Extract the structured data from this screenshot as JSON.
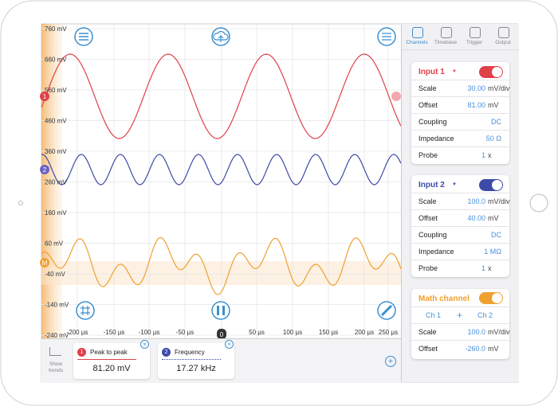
{
  "plot": {
    "y_labels": [
      "760 mV",
      "660 mV",
      "560 mV",
      "460 mV",
      "360 mV",
      "260 mV",
      "160 mV",
      "60 mV",
      "-40 mV",
      "-140 mV",
      "-240 mV"
    ],
    "x_labels": [
      "-200 µs",
      "-150 µs",
      "-100 µs",
      "-50 µs",
      "50 µs",
      "100 µs",
      "150 µs",
      "200 µs",
      "250 µs"
    ],
    "trigger_label": "0",
    "markers": [
      "1",
      "2",
      "M"
    ]
  },
  "tabs": [
    "Channels",
    "Timebase",
    "Trigger",
    "Output"
  ],
  "channels": [
    {
      "title": "Input 1",
      "rows": [
        [
          "Scale",
          "30.00",
          "mV/div"
        ],
        [
          "Offset",
          "81.00",
          "mV"
        ],
        [
          "Coupling",
          "DC"
        ],
        [
          "Impedance",
          "50 Ω"
        ],
        [
          "Probe",
          "1",
          "x"
        ]
      ]
    },
    {
      "title": "Input 2",
      "rows": [
        [
          "Scale",
          "100.0",
          "mV/div"
        ],
        [
          "Offset",
          "40.00",
          "mV"
        ],
        [
          "Coupling",
          "DC"
        ],
        [
          "Impedance",
          "1 MΩ"
        ],
        [
          "Probe",
          "1",
          "x"
        ]
      ]
    }
  ],
  "math": {
    "title": "Math channel",
    "operand_a": "Ch 1",
    "operator": "+",
    "operand_b": "Ch 2",
    "rows": [
      [
        "Scale",
        "100.0",
        "mV/div"
      ],
      [
        "Offset",
        "-260.0",
        "mV"
      ]
    ]
  },
  "trends_label": "Show trends",
  "measurements": [
    {
      "index": "1",
      "label": "Peak to peak",
      "value": "81.20 mV"
    },
    {
      "index": "2",
      "label": "Frequency",
      "value": "17.27 kHz"
    }
  ]
}
